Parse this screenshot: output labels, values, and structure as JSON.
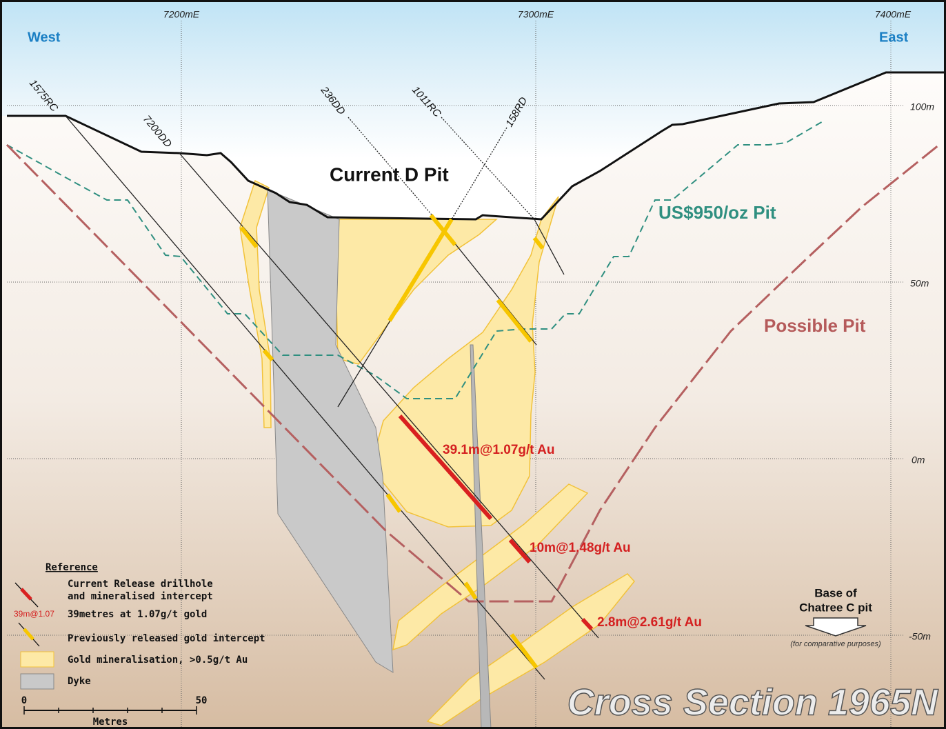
{
  "grid": {
    "eastings": [
      "7200mE",
      "7300mE",
      "7400mE"
    ],
    "elevations": [
      "100m",
      "50m",
      "0m",
      "-50m"
    ]
  },
  "directions": {
    "west": "West",
    "east": "East"
  },
  "drillholes": [
    "1575RC",
    "7200DD",
    "236DD",
    "1011RC",
    "158RD"
  ],
  "pits": {
    "current": "Current D Pit",
    "us950": "US$950/oz Pit",
    "possible": "Possible Pit"
  },
  "intercepts": [
    "39.1m@1.07g/t Au",
    "10m@1.48g/t Au",
    "2.8m@2.61g/t Au"
  ],
  "base_note": {
    "lines": [
      "Base of",
      "Chatree C pit"
    ],
    "note": "(for comparative purposes)"
  },
  "legend": {
    "title": "Reference",
    "items": [
      {
        "lines": [
          "Current Release drillhole",
          "and mineralised intercept"
        ]
      },
      {
        "marker": "39m@1.07",
        "lines": [
          "39metres at 1.07g/t gold"
        ]
      },
      {
        "lines": [
          "Previously released gold intercept"
        ]
      },
      {
        "lines": [
          "Gold mineralisation, >0.5g/t Au"
        ]
      },
      {
        "lines": [
          "Dyke"
        ]
      }
    ]
  },
  "scale": {
    "start": "0",
    "end": "50",
    "unit": "Metres"
  },
  "title": "Cross Section 1965N"
}
